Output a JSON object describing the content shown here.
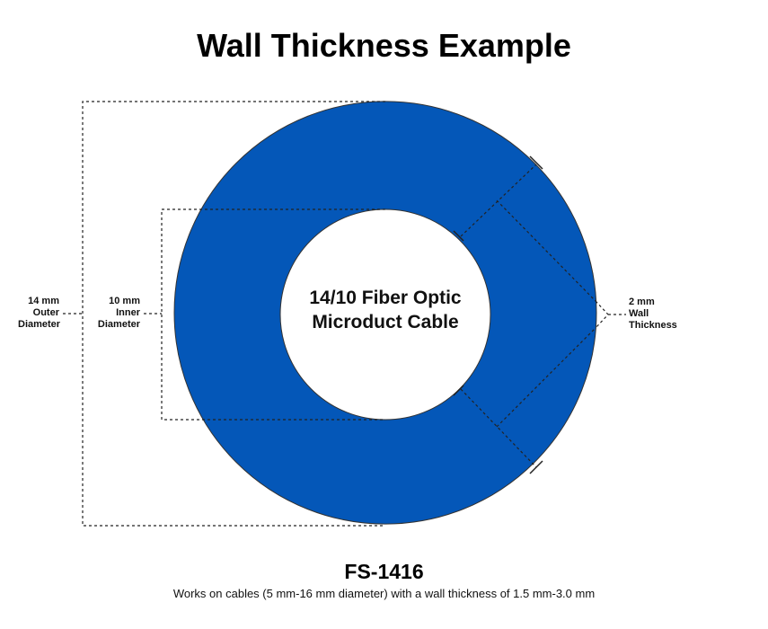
{
  "title": "Wall Thickness Example",
  "ring_color": "#0457b8",
  "center_label": {
    "line1": "14/10 Fiber Optic",
    "line2": "Microduct Cable"
  },
  "outer_label": {
    "line1": "14 mm",
    "line2": "Outer",
    "line3": "Diameter"
  },
  "inner_label": {
    "line1": "10 mm",
    "line2": "Inner",
    "line3": "Diameter"
  },
  "wall_label": {
    "line1": "2 mm",
    "line2": "Wall",
    "line3": "Thickness"
  },
  "product_code": "FS-1416",
  "note": "Works on cables (5 mm-16 mm diameter) with a wall thickness of 1.5 mm-3.0 mm"
}
